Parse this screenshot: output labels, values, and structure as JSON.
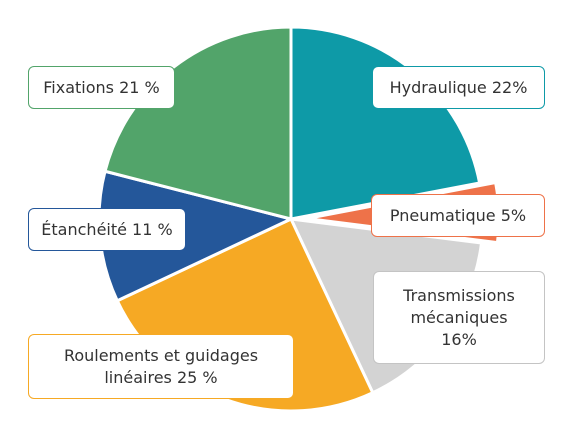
{
  "chart_data": {
    "type": "pie",
    "title": "",
    "slices": [
      {
        "name": "Hydraulique",
        "value": 22,
        "label": "Hydraulique 22%",
        "color": "#0e9aa7"
      },
      {
        "name": "Pneumatique",
        "value": 5,
        "label": "Pneumatique 5%",
        "color": "#ee7249"
      },
      {
        "name": "Transmissions mécaniques",
        "value": 16,
        "label": "Transmissions mécaniques 16%",
        "color": "#d3d3d3"
      },
      {
        "name": "Roulements et guidages linéaires",
        "value": 25,
        "label": "Roulements et guidages linéaires 25 %",
        "color": "#f6a924"
      },
      {
        "name": "Étanchéité",
        "value": 11,
        "label": "Étanchéité 11 %",
        "color": "#24579a"
      },
      {
        "name": "Fixations",
        "value": 21,
        "label": "Fixations 21 %",
        "color": "#52a46a"
      }
    ]
  },
  "labels": {
    "hydraulique": "Hydraulique 22%",
    "pneumatique": "Pneumatique 5%",
    "transmissions_line1": "Transmissions",
    "transmissions_line2": "mécaniques",
    "transmissions_line3": "16%",
    "roulements_line1": "Roulements et guidages",
    "roulements_line2": "linéaires 25 %",
    "etancheite": "Étanchéité 11 %",
    "fixations": "Fixations 21 %"
  }
}
